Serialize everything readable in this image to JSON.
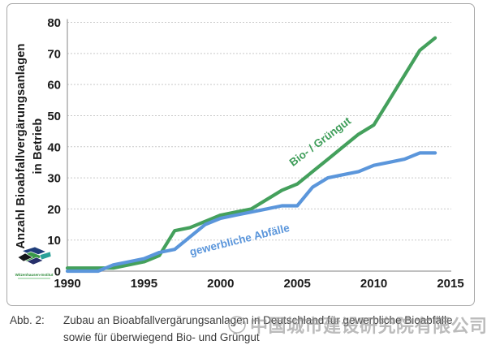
{
  "chart_data": {
    "type": "line",
    "title": "",
    "ylabel_line1": "Anzahl Bioabfallvergärungsanlagen",
    "ylabel_line2": "in Betrieb",
    "xlabel": "",
    "xlim": [
      1990,
      2015
    ],
    "ylim": [
      0,
      80
    ],
    "x_ticks": [
      1990,
      1995,
      2000,
      2005,
      2010,
      2015
    ],
    "y_ticks": [
      0,
      10,
      20,
      30,
      40,
      50,
      60,
      70,
      80
    ],
    "grid": true,
    "legend_position": "labels-on-lines",
    "x": [
      1990,
      1991,
      1992,
      1993,
      1994,
      1995,
      1996,
      1997,
      1998,
      1999,
      2000,
      2001,
      2002,
      2003,
      2004,
      2005,
      2006,
      2007,
      2008,
      2009,
      2010,
      2011,
      2012,
      2013,
      2014
    ],
    "series": [
      {
        "name": "Bio- / Grüngut",
        "color": "#44a05c",
        "values": [
          1,
          1,
          1,
          1,
          2,
          3,
          5,
          13,
          14,
          16,
          18,
          19,
          20,
          23,
          26,
          28,
          32,
          36,
          40,
          44,
          47,
          55,
          63,
          71,
          75
        ]
      },
      {
        "name": "gewerbliche Abfälle",
        "color": "#5b96db",
        "values": [
          0,
          0,
          0,
          2,
          3,
          4,
          6,
          7,
          11,
          15,
          17,
          18,
          19,
          20,
          21,
          21,
          27,
          30,
          31,
          32,
          34,
          35,
          36,
          38,
          38
        ]
      }
    ]
  },
  "logo": {
    "label": "Witzenhausen-Institut"
  },
  "caption": {
    "tag": "Abb. 2:",
    "line1": "Zubau an Bioabfallvergärungsanlagen in Deutschland für gewerbliche Bioabfälle",
    "line2": "sowie für überwiegend Bio- und Grüngut"
  },
  "watermark": {
    "text": "中国城市建设研究院有限公司"
  },
  "colors": {
    "grid": "#c9c9c9",
    "axis": "#9a9a9a",
    "tick_label": "#1a1a1a",
    "frame_border": "#a8a8a8",
    "watermark_gray": "#919191"
  }
}
